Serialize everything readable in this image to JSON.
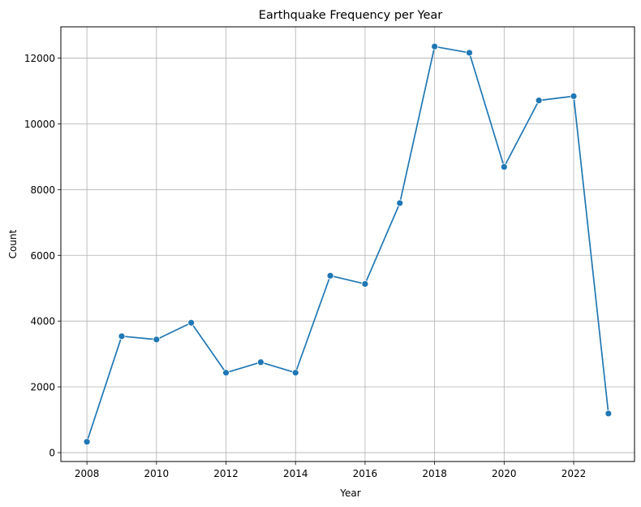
{
  "chart_data": {
    "type": "line",
    "title": "Earthquake Frequency per Year",
    "xlabel": "Year",
    "ylabel": "Count",
    "x": [
      2008,
      2009,
      2010,
      2011,
      2012,
      2013,
      2014,
      2015,
      2016,
      2017,
      2018,
      2019,
      2020,
      2021,
      2022,
      2023
    ],
    "series": [
      {
        "values": [
          330,
          3540,
          3440,
          3950,
          2430,
          2750,
          2430,
          5380,
          5130,
          7590,
          12350,
          12160,
          8690,
          10710,
          10840,
          1190
        ],
        "color": "#1f77b4",
        "marker": "circle"
      }
    ],
    "xticks": [
      2008,
      2010,
      2012,
      2014,
      2016,
      2018,
      2020,
      2022
    ],
    "yticks": [
      0,
      2000,
      4000,
      6000,
      8000,
      10000,
      12000
    ],
    "xlim": [
      2007.25,
      2023.75
    ],
    "ylim": [
      -270,
      12950
    ],
    "grid": true,
    "grid_color": "#b0b0b0"
  }
}
